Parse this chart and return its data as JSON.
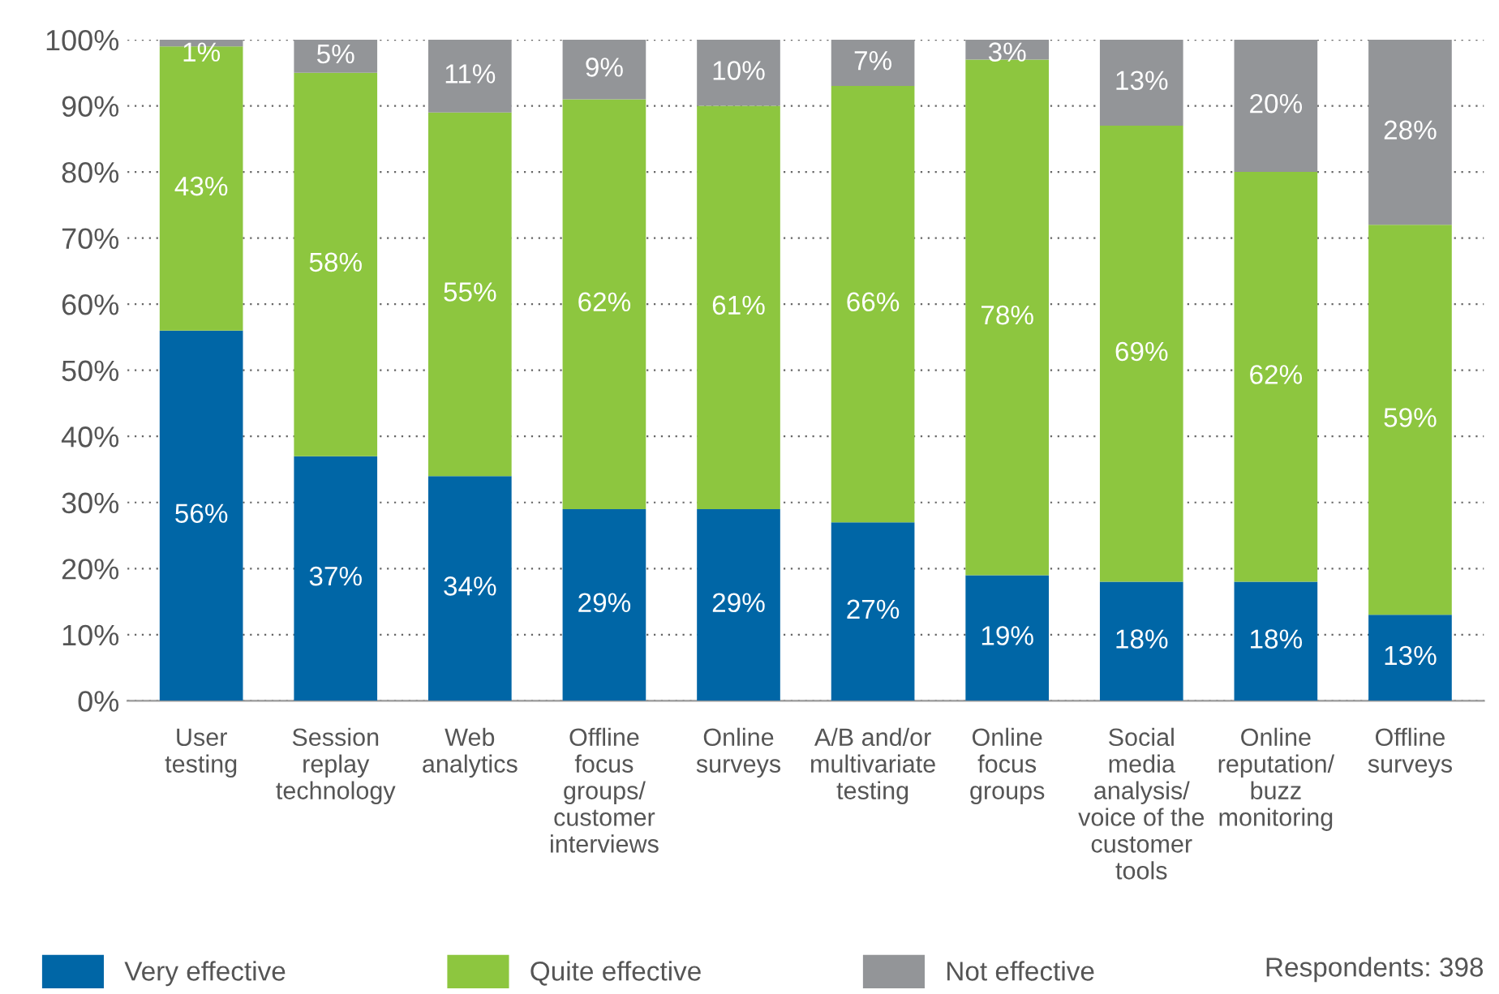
{
  "chart_data": {
    "type": "bar",
    "stacked": true,
    "categories": [
      "User\ntesting",
      "Session\nreplay\ntechnology",
      "Web\nanalytics",
      "Offline\nfocus\ngroups/\ncustomer\ninterviews",
      "Online\nsurveys",
      "A/B and/or\nmultivariate\ntesting",
      "Online\nfocus\ngroups",
      "Social\nmedia\nanalysis/\nvoice of the\ncustomer\ntools",
      "Online\nreputation/\nbuzz\nmonitoring",
      "Offline\nsurveys"
    ],
    "series": [
      {
        "name": "Very effective",
        "color": "#0066a6",
        "values": [
          56,
          37,
          34,
          29,
          29,
          27,
          19,
          18,
          18,
          13
        ],
        "value_labels": [
          "56%",
          "37%",
          "34%",
          "29%",
          "29%",
          "27%",
          "19%",
          "18%",
          "18%",
          "13%"
        ]
      },
      {
        "name": "Quite effective",
        "color": "#8dc63f",
        "values": [
          43,
          58,
          55,
          62,
          61,
          66,
          78,
          69,
          62,
          59
        ],
        "value_labels": [
          "43%",
          "58%",
          "55%",
          "62%",
          "61%",
          "66%",
          "78%",
          "69%",
          "62%",
          "59%"
        ]
      },
      {
        "name": "Not effective",
        "color": "#939598",
        "values": [
          1,
          5,
          11,
          9,
          10,
          7,
          3,
          13,
          20,
          28
        ],
        "value_labels": [
          "1%",
          "5%",
          "11%",
          "9%",
          "10%",
          "7%",
          "3%",
          "13%",
          "20%",
          "28%"
        ]
      }
    ],
    "ylim": [
      0,
      100
    ],
    "yticks": [
      {
        "value": 0,
        "label": "0%"
      },
      {
        "value": 10,
        "label": "10%"
      },
      {
        "value": 20,
        "label": "20%"
      },
      {
        "value": 30,
        "label": "30%"
      },
      {
        "value": 40,
        "label": "40%"
      },
      {
        "value": 50,
        "label": "50%"
      },
      {
        "value": 60,
        "label": "60%"
      },
      {
        "value": 70,
        "label": "70%"
      },
      {
        "value": 80,
        "label": "80%"
      },
      {
        "value": 90,
        "label": "90%"
      },
      {
        "value": 100,
        "label": "100%"
      }
    ],
    "grid": "y",
    "legend": "bottom",
    "annotations": [
      "Respondents: 398"
    ]
  }
}
